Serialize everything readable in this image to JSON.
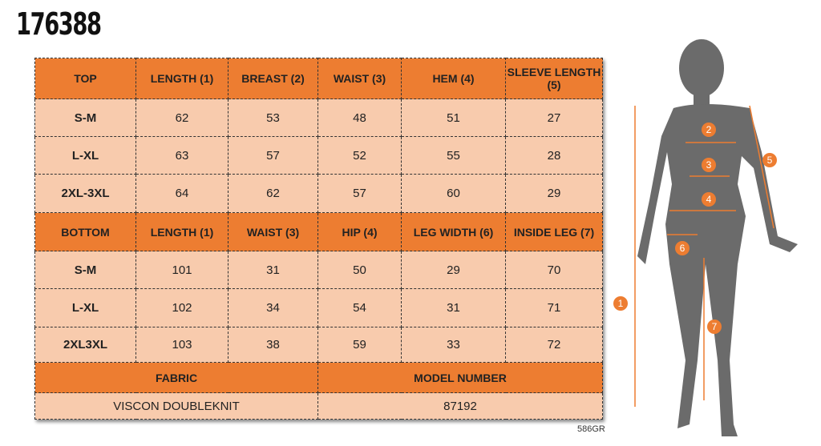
{
  "product_code": "176388",
  "top": {
    "headers": [
      "TOP",
      "LENGTH (1)",
      "BREAST (2)",
      "WAIST (3)",
      "HEM (4)",
      "SLEEVE LENGTH (5)"
    ],
    "rows": [
      [
        "S-M",
        "62",
        "53",
        "48",
        "51",
        "27"
      ],
      [
        "L-XL",
        "63",
        "57",
        "52",
        "55",
        "28"
      ],
      [
        "2XL-3XL",
        "64",
        "62",
        "57",
        "60",
        "29"
      ]
    ]
  },
  "bottom": {
    "headers": [
      "BOTTOM",
      "LENGTH (1)",
      "WAIST (3)",
      "HIP (4)",
      "LEG WIDTH (6)",
      "INSIDE LEG (7)"
    ],
    "rows": [
      [
        "S-M",
        "101",
        "31",
        "50",
        "29",
        "70"
      ],
      [
        "L-XL",
        "102",
        "34",
        "54",
        "31",
        "71"
      ],
      [
        "2XL3XL",
        "103",
        "38",
        "59",
        "33",
        "72"
      ]
    ]
  },
  "info": {
    "fabric_label": "FABRIC",
    "fabric": "VISCON DOUBLEKNIT",
    "model_label": "MODEL NUMBER",
    "model": "87192"
  },
  "footnote": "586GR",
  "figure_markers": [
    "1",
    "2",
    "3",
    "4",
    "5",
    "6",
    "7"
  ],
  "colors": {
    "header": "#ed7d31",
    "cell": "#f8cbad",
    "marker": "#ed7d31"
  }
}
